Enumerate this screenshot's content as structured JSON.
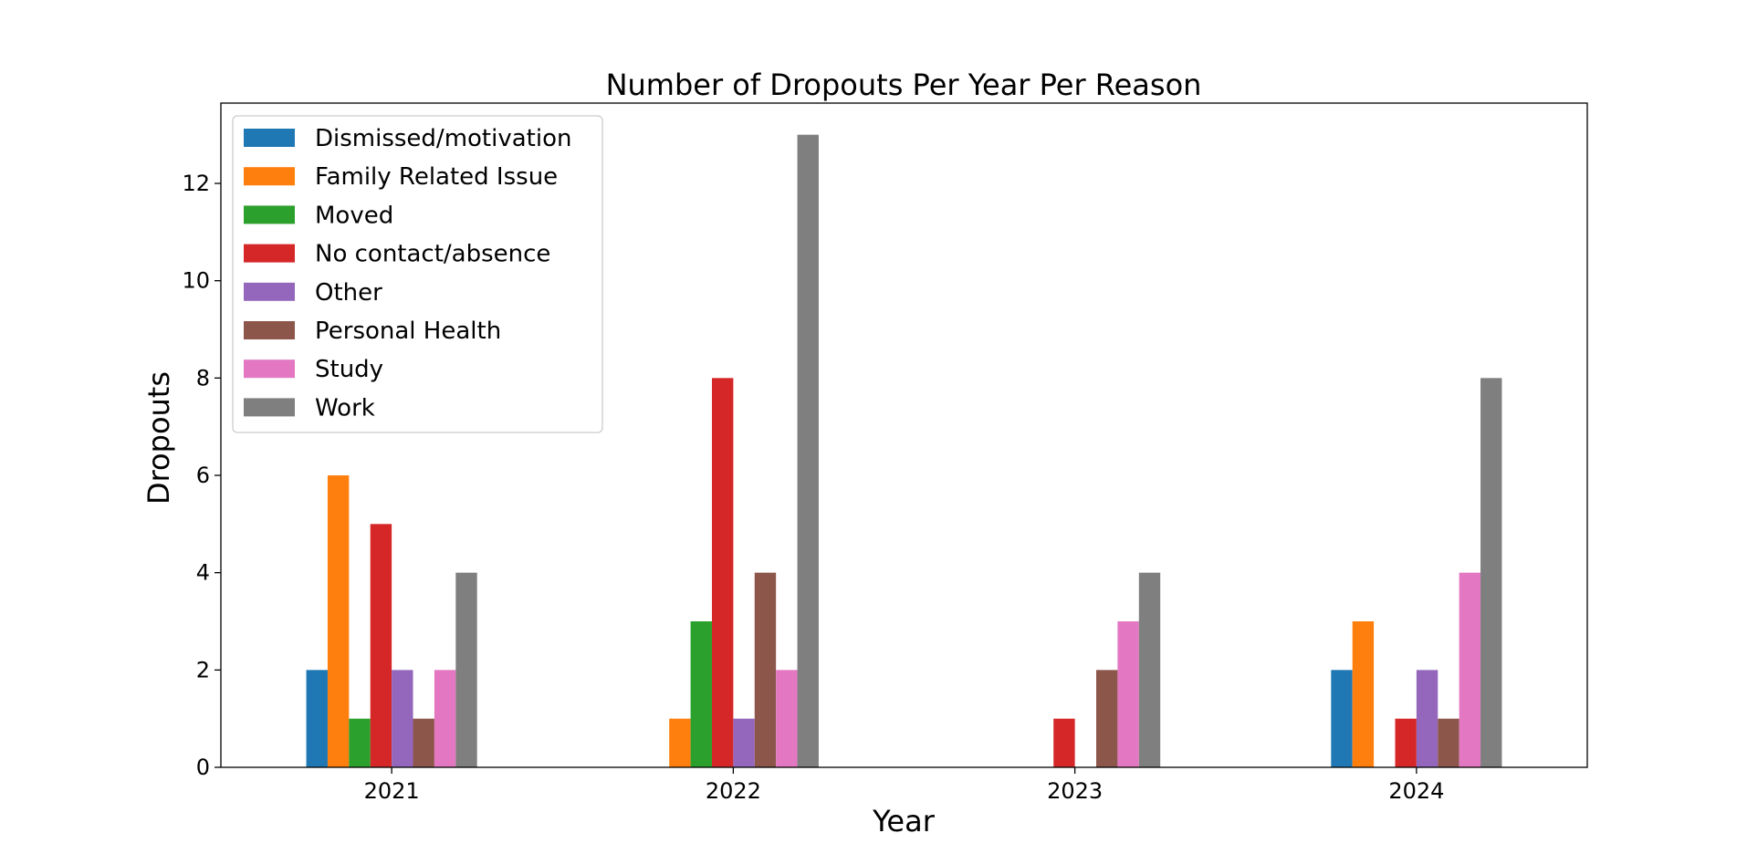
{
  "chart_data": {
    "type": "bar",
    "title": "Number of Dropouts Per Year Per Reason",
    "xlabel": "Year",
    "ylabel": "Dropouts",
    "categories": [
      "2021",
      "2022",
      "2023",
      "2024"
    ],
    "ylim": [
      0,
      13.65
    ],
    "yticks": [
      0,
      2,
      4,
      6,
      8,
      10,
      12
    ],
    "grid": false,
    "legend_position": "top-left",
    "series": [
      {
        "name": "Dismissed/motivation",
        "color": "#1f77b4",
        "values": [
          2,
          0,
          0,
          2
        ]
      },
      {
        "name": "Family Related Issue",
        "color": "#ff7f0e",
        "values": [
          6,
          1,
          0,
          3
        ]
      },
      {
        "name": "Moved",
        "color": "#2ca02c",
        "values": [
          1,
          3,
          0,
          0
        ]
      },
      {
        "name": "No contact/absence",
        "color": "#d62728",
        "values": [
          5,
          8,
          1,
          1
        ]
      },
      {
        "name": "Other",
        "color": "#9467bd",
        "values": [
          2,
          1,
          0,
          2
        ]
      },
      {
        "name": "Personal Health",
        "color": "#8c564b",
        "values": [
          1,
          4,
          2,
          1
        ]
      },
      {
        "name": "Study",
        "color": "#e377c2",
        "values": [
          2,
          2,
          3,
          4
        ]
      },
      {
        "name": "Work",
        "color": "#7f7f7f",
        "values": [
          4,
          13,
          4,
          8
        ]
      }
    ]
  }
}
